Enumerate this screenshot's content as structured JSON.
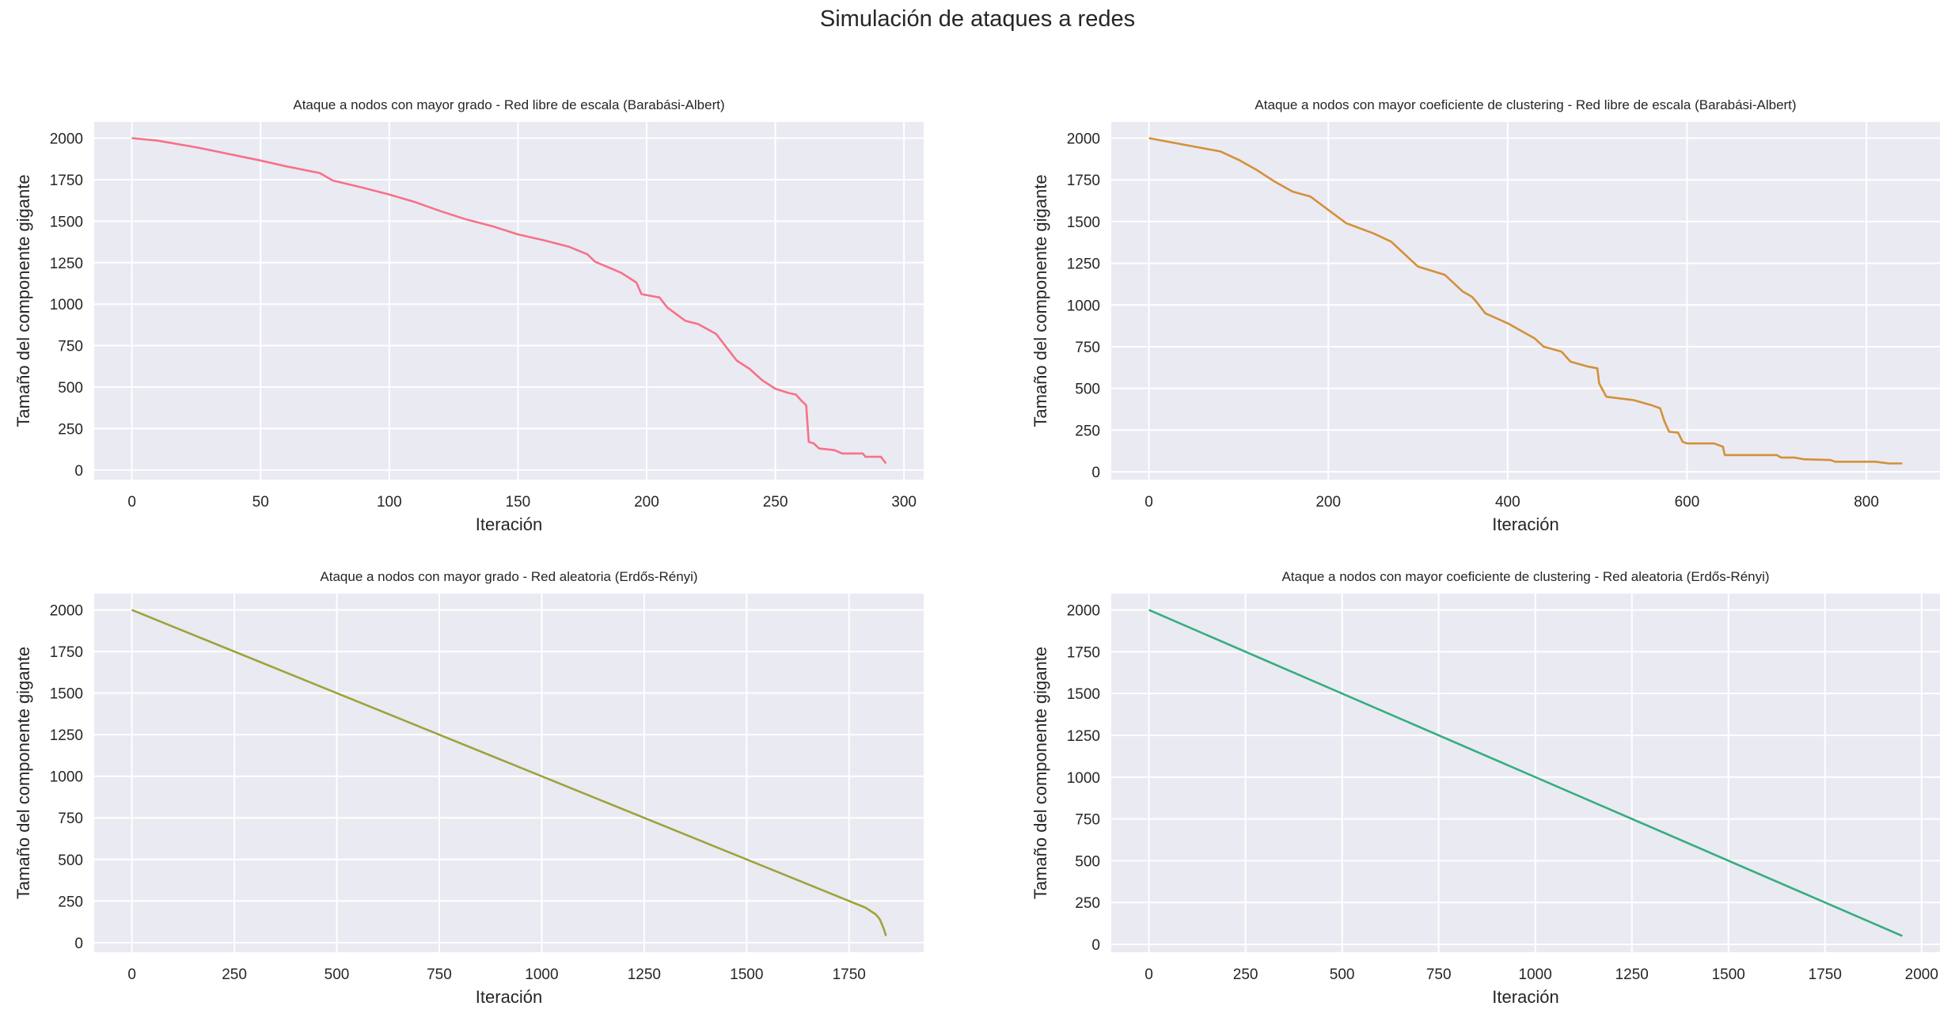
{
  "suptitle": "Simulación de ataques a redes",
  "chart_data": [
    {
      "type": "line",
      "title": "Ataque a nodos con mayor grado - Red libre de escala (Barabási-Albert)",
      "xlabel": "Iteración",
      "ylabel": "Tamaño del componente gigante",
      "xticks": [
        0,
        50,
        100,
        150,
        200,
        250,
        300
      ],
      "yticks": [
        0,
        250,
        500,
        750,
        1000,
        1250,
        1500,
        1750,
        2000
      ],
      "grid": true,
      "color": "#f77189",
      "x": [
        0,
        10,
        25,
        50,
        60,
        73,
        78,
        90,
        100,
        110,
        120,
        130,
        140,
        150,
        160,
        170,
        177,
        180,
        190,
        196,
        198,
        205,
        208,
        215,
        220,
        227,
        232,
        235,
        240,
        245,
        250,
        255,
        258,
        260,
        262,
        263,
        265,
        267,
        273,
        276,
        284,
        285,
        291,
        293
      ],
      "y": [
        2000,
        1985,
        1945,
        1865,
        1830,
        1790,
        1745,
        1700,
        1660,
        1615,
        1560,
        1510,
        1470,
        1420,
        1385,
        1345,
        1300,
        1255,
        1190,
        1130,
        1060,
        1040,
        980,
        900,
        880,
        820,
        720,
        660,
        610,
        540,
        490,
        465,
        455,
        420,
        390,
        170,
        160,
        130,
        120,
        100,
        100,
        80,
        80,
        40
      ]
    },
    {
      "type": "line",
      "title": "Ataque a nodos con mayor coeficiente de clustering - Red libre de escala (Barabási-Albert)",
      "xlabel": "Iteración",
      "ylabel": "Tamaño del componente gigante",
      "xticks": [
        0,
        200,
        400,
        600,
        800
      ],
      "yticks": [
        0,
        250,
        500,
        750,
        1000,
        1250,
        1500,
        1750,
        2000
      ],
      "grid": true,
      "color": "#d3903a",
      "x": [
        0,
        40,
        80,
        100,
        120,
        140,
        160,
        180,
        200,
        220,
        250,
        270,
        300,
        330,
        350,
        360,
        365,
        375,
        400,
        420,
        430,
        440,
        460,
        470,
        490,
        500,
        502,
        510,
        540,
        560,
        570,
        575,
        580,
        590,
        595,
        600,
        630,
        640,
        642,
        700,
        705,
        720,
        730,
        760,
        765,
        810,
        825,
        840
      ],
      "y": [
        2000,
        1960,
        1920,
        1870,
        1810,
        1740,
        1680,
        1650,
        1570,
        1490,
        1430,
        1380,
        1230,
        1180,
        1080,
        1050,
        1020,
        950,
        890,
        830,
        800,
        750,
        720,
        660,
        630,
        620,
        530,
        450,
        430,
        400,
        380,
        300,
        240,
        235,
        180,
        170,
        170,
        150,
        100,
        100,
        85,
        85,
        75,
        70,
        60,
        60,
        50,
        50
      ]
    },
    {
      "type": "line",
      "title": "Ataque a nodos con mayor grado - Red aleatoria (Erdős-Rényi)",
      "xlabel": "Iteración",
      "ylabel": "Tamaño del componente gigante",
      "xticks": [
        0,
        250,
        500,
        750,
        1000,
        1250,
        1500,
        1750
      ],
      "yticks": [
        0,
        250,
        500,
        750,
        1000,
        1250,
        1500,
        1750,
        2000
      ],
      "grid": true,
      "color": "#9ea23a",
      "x": [
        0,
        1790,
        1815,
        1825,
        1835,
        1840
      ],
      "y": [
        2000,
        210,
        170,
        140,
        80,
        40
      ]
    },
    {
      "type": "line",
      "title": "Ataque a nodos con mayor coeficiente de clustering - Red aleatoria (Erdős-Rényi)",
      "xlabel": "Iteración",
      "ylabel": "Tamaño del componente gigante",
      "xticks": [
        0,
        250,
        500,
        750,
        1000,
        1250,
        1500,
        1750,
        2000
      ],
      "yticks": [
        0,
        250,
        500,
        750,
        1000,
        1250,
        1500,
        1750,
        2000
      ],
      "grid": true,
      "color": "#36ad7f",
      "x": [
        0,
        1950
      ],
      "y": [
        2000,
        50
      ]
    }
  ]
}
